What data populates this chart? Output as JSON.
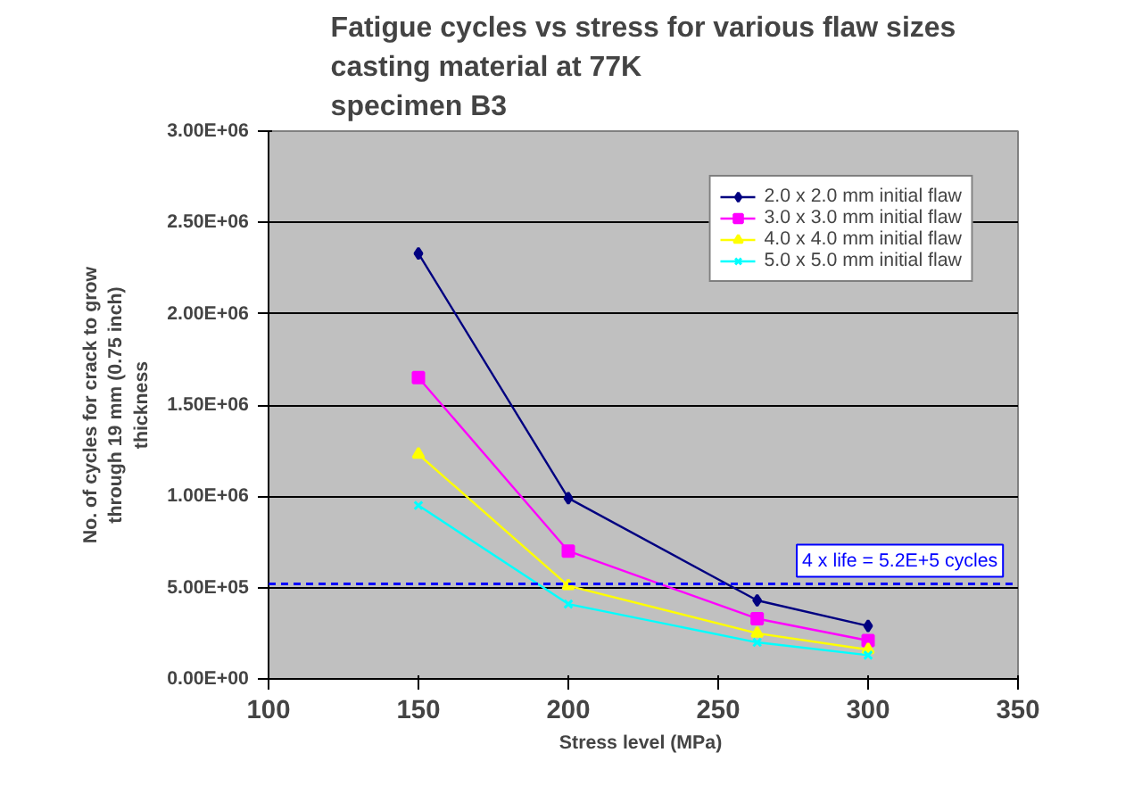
{
  "chart_data": {
    "type": "line",
    "title": "Fatigue cycles vs stress for various flaw sizes\ncasting material at 77K\nspecimen B3",
    "xlabel": "Stress level  (MPa)",
    "ylabel": "No. of cycles for crack to grow\nthrough 19 mm (0.75 inch)\nthickness",
    "x": [
      150,
      200,
      263,
      300
    ],
    "series": [
      {
        "name": "2.0 x 2.0 mm initial flaw",
        "color": "#000080",
        "marker": "diamond",
        "values": [
          2330000,
          990000,
          430000,
          290000
        ]
      },
      {
        "name": "3.0 x 3.0 mm initial flaw",
        "color": "#ff00ff",
        "marker": "square",
        "values": [
          1650000,
          700000,
          330000,
          210000
        ]
      },
      {
        "name": "4.0 x 4.0 mm initial flaw",
        "color": "#ffff00",
        "marker": "triangle",
        "values": [
          1230000,
          510000,
          250000,
          160000
        ]
      },
      {
        "name": "5.0 x 5.0 mm initial flaw",
        "color": "#00ffff",
        "marker": "cross",
        "values": [
          950000,
          410000,
          200000,
          130000
        ]
      }
    ],
    "xlim": [
      100,
      350
    ],
    "xticks": [
      100,
      150,
      200,
      250,
      300,
      350
    ],
    "ylim": [
      0,
      3000000
    ],
    "yticks": [
      {
        "value": 0,
        "label": "0.00E+00"
      },
      {
        "value": 500000,
        "label": "5.00E+05"
      },
      {
        "value": 1000000,
        "label": "1.00E+06"
      },
      {
        "value": 1500000,
        "label": "1.50E+06"
      },
      {
        "value": 2000000,
        "label": "2.00E+06"
      },
      {
        "value": 2500000,
        "label": "2.50E+06"
      },
      {
        "value": 3000000,
        "label": "3.00E+06"
      }
    ],
    "ref_lines": [
      {
        "axis": "y",
        "value": 520000,
        "color": "#0000ff",
        "line_style": "dashed"
      }
    ],
    "annotations": [
      {
        "text": "4 x life = 5.2E+5 cycles",
        "x": 350,
        "y": 520000
      }
    ],
    "grid": "y",
    "legend": "top right"
  }
}
